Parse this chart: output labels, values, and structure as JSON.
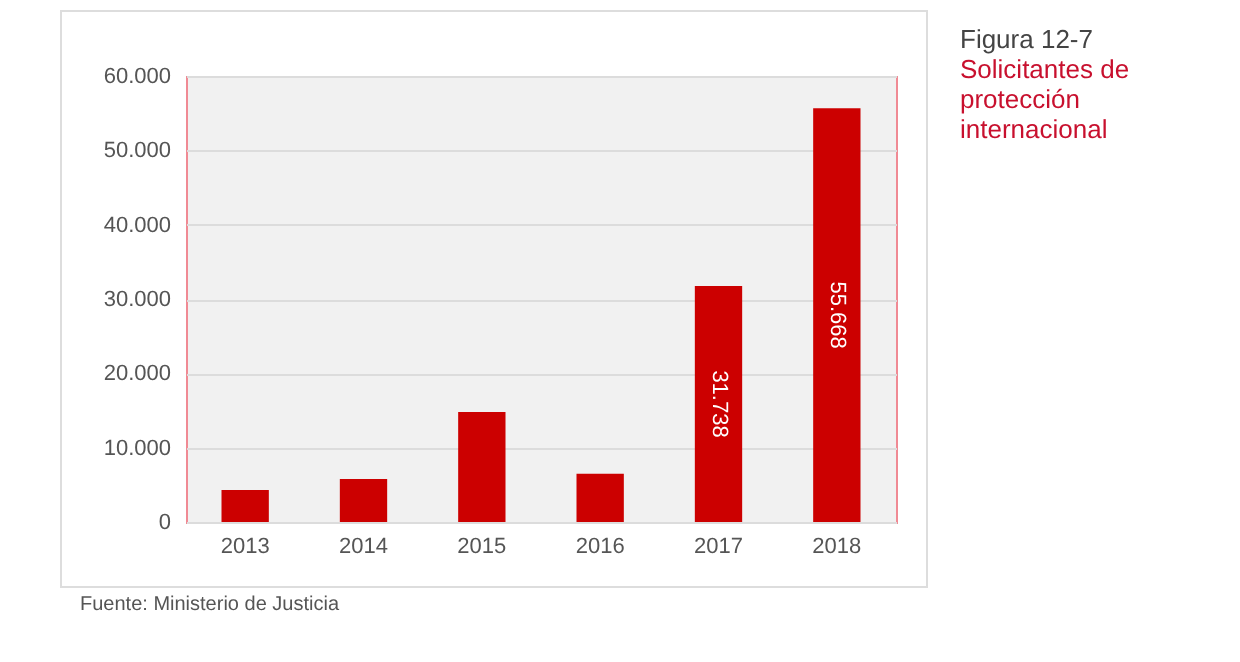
{
  "chart_data": {
    "type": "bar",
    "title": "Figura 12-7",
    "subtitle": "Solicitantes de protección internacional",
    "categories": [
      "2013",
      "2014",
      "2015",
      "2016",
      "2017",
      "2018"
    ],
    "values": [
      4300,
      5800,
      14800,
      6500,
      31738,
      55668
    ],
    "value_labels": [
      null,
      null,
      null,
      null,
      "31.738",
      "55.668"
    ],
    "color": "#cc0000",
    "ylim": [
      0,
      60000
    ],
    "yticks": [
      {
        "value": 0,
        "label": "0"
      },
      {
        "value": 10000,
        "label": "10.000"
      },
      {
        "value": 20000,
        "label": "20.000"
      },
      {
        "value": 30000,
        "label": "30.000"
      },
      {
        "value": 40000,
        "label": "40.000"
      },
      {
        "value": 50000,
        "label": "50.000"
      },
      {
        "value": 60000,
        "label": "60.000"
      }
    ],
    "grid": "y",
    "annotations": [
      "Fuente: Ministerio de Justicia"
    ]
  }
}
